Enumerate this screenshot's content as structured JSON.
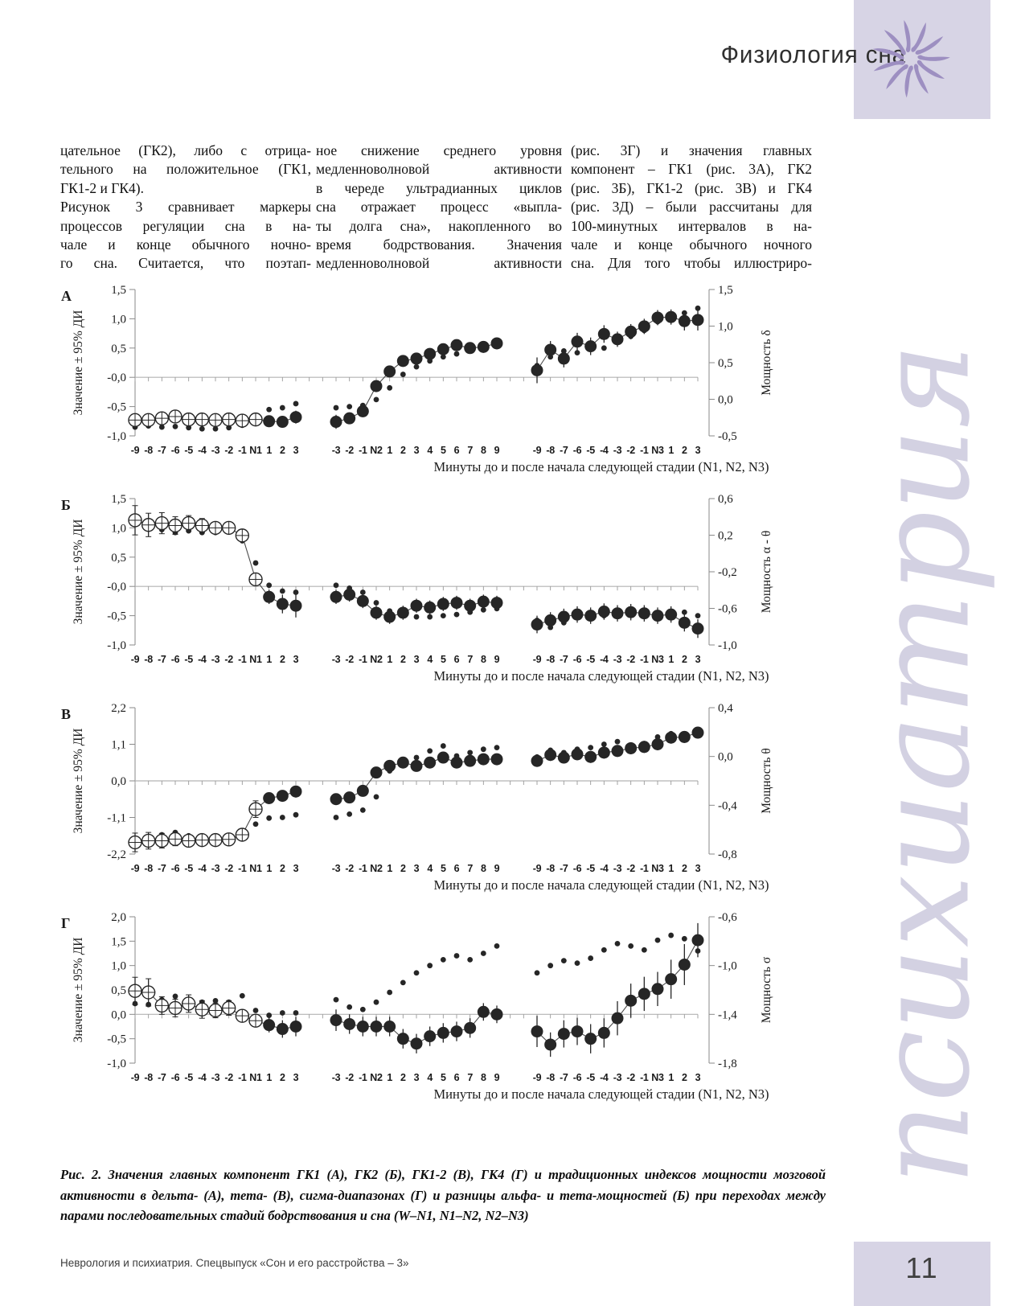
{
  "page": {
    "header": {
      "title": "Физиология сна",
      "box_color": "#d7d4e5",
      "star_color": "#9d8fc1"
    },
    "watermark": "психиатрия",
    "footer": {
      "journal": "Неврология и психиатрия. Спецвыпуск «Сон и его расстройства – 3»",
      "page_number": "11"
    }
  },
  "article": {
    "columns": [
      [
        "цательное (ГК2), либо с отрица-",
        "тельного на положительное (ГК1,",
        "ГК1-2 и ГК4).",
        "Рисунок 3 сравнивает маркеры",
        "процессов регуляции сна в на-",
        "чале и конце обычного ночно-",
        "го сна. Считается, что поэтап-"
      ],
      [
        "ное снижение среднего уровня",
        "медленноволновой активности",
        "в череде ультрадианных циклов",
        "сна отражает процесс «выпла-",
        "ты долга сна», накопленного во",
        "время бодрствования. Значения",
        "медленноволновой активности"
      ],
      [
        "(рис. 3Г) и значения главных",
        "компонент – ГК1 (рис. 3А), ГК2",
        "(рис. 3Б), ГК1-2 (рис. 3В) и ГК4",
        "(рис. 3Д) – были рассчитаны для",
        "100-минутных интервалов в на-",
        "чале и конце обычного ночного",
        "сна. Для того чтобы иллюстриро-"
      ]
    ]
  },
  "caption": "Рис. 2. Значения главных компонент ГК1 (А), ГК2 (Б), ГК1-2 (В), ГК4 (Г) и традиционных индексов мощности мозговой активности в дельта- (А), тета- (В), сигма-диапазонах (Г) и разницы альфа- и тета-мощностей (Б) при переходах между парами последовательных стадий бодрствования и сна (W–N1, N1–N2, N2–N3)",
  "chart_data": [
    {
      "panel": "А",
      "type": "scatter",
      "ylabel_left": "Значение ± 95% ДИ",
      "ylabel_right": "Мощность δ",
      "xlabel": "Минуты до и после начала следующей стадии (N1, N2, N3)",
      "left_range": [
        -1.0,
        1.5
      ],
      "left_ticks": [
        {
          "v": 1.5,
          "label": "1,5"
        },
        {
          "v": 1.0,
          "label": "1,0"
        },
        {
          "v": 0.5,
          "label": "0,5"
        },
        {
          "v": 0.0,
          "label": "-0,0"
        },
        {
          "v": -0.5,
          "label": "-0,5"
        },
        {
          "v": -1.0,
          "label": "-1,0"
        }
      ],
      "right_ticks": [
        "1,5",
        "1,0",
        "0,5",
        "0,0",
        "-0,5"
      ],
      "groups": [
        {
          "labels": [
            "-9",
            "-8",
            "-7",
            "-6",
            "-5",
            "-4",
            "-3",
            "-2",
            "-1",
            "N1",
            "1",
            "2",
            "3"
          ],
          "open_until": 10,
          "main": [
            -0.73,
            -0.73,
            -0.7,
            -0.67,
            -0.72,
            -0.72,
            -0.73,
            -0.72,
            -0.74,
            -0.72,
            -0.75,
            -0.76,
            -0.68
          ],
          "err": [
            0.1,
            0.1,
            0.1,
            0.09,
            0.09,
            0.09,
            0.09,
            0.09,
            0.09,
            0.08,
            0.1,
            0.1,
            0.11
          ],
          "dotted": [
            -0.85,
            -0.83,
            -0.85,
            -0.84,
            -0.86,
            -0.88,
            -0.88,
            -0.86,
            -0.82,
            -0.65,
            -0.55,
            -0.52,
            -0.45
          ]
        },
        {
          "labels": [
            "-3",
            "-2",
            "-1",
            "N2",
            "1",
            "2",
            "3",
            "4",
            "5",
            "6",
            "7",
            "8",
            "9"
          ],
          "open_until": 0,
          "main": [
            -0.76,
            -0.7,
            -0.58,
            -0.15,
            0.1,
            0.28,
            0.32,
            0.4,
            0.48,
            0.55,
            0.5,
            0.52,
            0.58
          ],
          "err": [
            0.12,
            0.1,
            0.1,
            0.1,
            0.09,
            0.09,
            0.09,
            0.09,
            0.09,
            0.09,
            0.09,
            0.1,
            0.1
          ],
          "dotted": [
            -0.52,
            -0.5,
            -0.48,
            -0.38,
            -0.18,
            0.05,
            0.18,
            0.28,
            0.35,
            0.4,
            0.45,
            0.52,
            0.62
          ]
        },
        {
          "labels": [
            "-9",
            "-8",
            "-7",
            "-6",
            "-5",
            "-4",
            "-3",
            "-2",
            "-1",
            "N3",
            "1",
            "2",
            "3"
          ],
          "open_until": 0,
          "main": [
            0.12,
            0.47,
            0.32,
            0.61,
            0.53,
            0.74,
            0.65,
            0.78,
            0.87,
            1.02,
            1.03,
            0.96,
            0.98
          ],
          "err": [
            0.22,
            0.15,
            0.15,
            0.15,
            0.15,
            0.15,
            0.13,
            0.13,
            0.13,
            0.13,
            0.13,
            0.16,
            0.18
          ],
          "dotted": [
            0.2,
            0.35,
            0.45,
            0.42,
            0.55,
            0.5,
            0.62,
            0.7,
            0.8,
            0.95,
            1.08,
            1.1,
            1.18
          ]
        }
      ]
    },
    {
      "panel": "Б",
      "type": "scatter",
      "ylabel_left": "Значение ± 95% ДИ",
      "ylabel_right": "Мощность α - θ",
      "xlabel": "Минуты до и после начала следующей стадии (N1, N2, N3)",
      "left_range": [
        -1.0,
        1.5
      ],
      "left_ticks": [
        {
          "v": 1.5,
          "label": "1,5"
        },
        {
          "v": 1.0,
          "label": "1,0"
        },
        {
          "v": 0.5,
          "label": "0,5"
        },
        {
          "v": 0.0,
          "label": "-0,0"
        },
        {
          "v": -0.5,
          "label": "-0,5"
        },
        {
          "v": -1.0,
          "label": "-1,0"
        }
      ],
      "right_ticks": [
        "0,6",
        "0,2",
        "-0,2",
        "-0,6",
        "-1,0"
      ],
      "groups": [
        {
          "labels": [
            "-9",
            "-8",
            "-7",
            "-6",
            "-5",
            "-4",
            "-3",
            "-2",
            "-1",
            "N1",
            "1",
            "2",
            "3"
          ],
          "open_until": 10,
          "main": [
            1.13,
            1.05,
            1.08,
            1.04,
            1.08,
            1.04,
            1.0,
            1.0,
            0.87,
            0.12,
            -0.18,
            -0.3,
            -0.33
          ],
          "err": [
            0.25,
            0.2,
            0.18,
            0.15,
            0.13,
            0.12,
            0.1,
            0.1,
            0.08,
            0.1,
            0.12,
            0.16,
            0.2
          ],
          "dotted": [
            1.1,
            1.02,
            0.97,
            0.92,
            0.95,
            0.92,
            0.92,
            0.94,
            0.78,
            0.4,
            0.02,
            -0.08,
            -0.1
          ]
        },
        {
          "labels": [
            "-3",
            "-2",
            "-1",
            "N2",
            "1",
            "2",
            "3",
            "4",
            "5",
            "6",
            "7",
            "8",
            "9"
          ],
          "open_until": 0,
          "main": [
            -0.18,
            -0.14,
            -0.25,
            -0.45,
            -0.52,
            -0.45,
            -0.33,
            -0.36,
            -0.3,
            -0.28,
            -0.33,
            -0.26,
            -0.28
          ],
          "err": [
            0.12,
            0.12,
            0.12,
            0.12,
            0.12,
            0.12,
            0.12,
            0.12,
            0.12,
            0.12,
            0.12,
            0.12,
            0.12
          ],
          "dotted": [
            0.02,
            -0.03,
            -0.1,
            -0.28,
            -0.42,
            -0.48,
            -0.52,
            -0.52,
            -0.5,
            -0.48,
            -0.44,
            -0.4,
            -0.38
          ]
        },
        {
          "labels": [
            "-9",
            "-8",
            "-7",
            "-6",
            "-5",
            "-4",
            "-3",
            "-2",
            "-1",
            "N3",
            "1",
            "2",
            "3"
          ],
          "open_until": 0,
          "main": [
            -0.65,
            -0.58,
            -0.52,
            -0.48,
            -0.5,
            -0.43,
            -0.46,
            -0.44,
            -0.46,
            -0.5,
            -0.48,
            -0.62,
            -0.72
          ],
          "err": [
            0.15,
            0.14,
            0.14,
            0.14,
            0.14,
            0.14,
            0.14,
            0.14,
            0.14,
            0.14,
            0.14,
            0.15,
            0.16
          ],
          "dotted": [
            -0.58,
            -0.7,
            -0.62,
            -0.52,
            -0.46,
            -0.5,
            -0.44,
            -0.4,
            -0.44,
            -0.46,
            -0.52,
            -0.44,
            -0.5
          ]
        }
      ]
    },
    {
      "panel": "В",
      "type": "scatter",
      "ylabel_left": "Значение ± 95% ДИ",
      "ylabel_right": "Мощность θ",
      "xlabel": "Минуты до и после начала следующей стадии (N1, N2, N3)",
      "left_range": [
        -2.2,
        2.2
      ],
      "left_ticks": [
        {
          "v": 2.2,
          "label": "2,2"
        },
        {
          "v": 1.1,
          "label": "1,1"
        },
        {
          "v": 0.0,
          "label": "0,0"
        },
        {
          "v": -1.1,
          "label": "-1,1"
        },
        {
          "v": -2.2,
          "label": "-2,2"
        }
      ],
      "right_ticks": [
        "0,4",
        "0,0",
        "-0,4",
        "-0,8"
      ],
      "groups": [
        {
          "labels": [
            "-9",
            "-8",
            "-7",
            "-6",
            "-5",
            "-4",
            "-3",
            "-2",
            "-1",
            "N1",
            "1",
            "2",
            "3"
          ],
          "open_until": 10,
          "main": [
            -1.85,
            -1.8,
            -1.8,
            -1.75,
            -1.8,
            -1.78,
            -1.78,
            -1.76,
            -1.62,
            -0.85,
            -0.52,
            -0.45,
            -0.32
          ],
          "err": [
            0.28,
            0.25,
            0.22,
            0.2,
            0.18,
            0.15,
            0.15,
            0.15,
            0.15,
            0.25,
            0.15,
            0.15,
            0.18
          ],
          "dotted": [
            -1.82,
            -1.76,
            -1.62,
            -1.55,
            -1.65,
            -1.68,
            -1.7,
            -1.66,
            -1.5,
            -1.3,
            -1.12,
            -1.1,
            -1.02
          ]
        },
        {
          "labels": [
            "-3",
            "-2",
            "-1",
            "N2",
            "1",
            "2",
            "3",
            "4",
            "5",
            "6",
            "7",
            "8",
            "9"
          ],
          "open_until": 0,
          "main": [
            -0.55,
            -0.5,
            -0.3,
            0.25,
            0.45,
            0.55,
            0.45,
            0.55,
            0.7,
            0.55,
            0.6,
            0.65,
            0.65
          ],
          "err": [
            0.15,
            0.15,
            0.15,
            0.15,
            0.15,
            0.15,
            0.15,
            0.15,
            0.15,
            0.15,
            0.15,
            0.15,
            0.15
          ],
          "dotted": [
            -1.1,
            -1.0,
            -0.88,
            -0.48,
            0.3,
            0.55,
            0.7,
            0.9,
            1.05,
            0.75,
            0.85,
            0.95,
            1.0
          ]
        },
        {
          "labels": [
            "-9",
            "-8",
            "-7",
            "-6",
            "-5",
            "-4",
            "-3",
            "-2",
            "-1",
            "N3",
            "1",
            "2",
            "3"
          ],
          "open_until": 0,
          "main": [
            0.6,
            0.78,
            0.7,
            0.8,
            0.72,
            0.85,
            0.9,
            0.98,
            1.02,
            1.1,
            1.3,
            1.32,
            1.45
          ],
          "err": [
            0.18,
            0.18,
            0.18,
            0.18,
            0.18,
            0.18,
            0.18,
            0.18,
            0.18,
            0.18,
            0.18,
            0.18,
            0.18
          ],
          "dotted": [
            0.72,
            0.92,
            0.85,
            0.95,
            1.0,
            1.1,
            1.18,
            1.08,
            1.12,
            1.32,
            1.42,
            1.38,
            1.5
          ]
        }
      ]
    },
    {
      "panel": "Г",
      "type": "scatter",
      "ylabel_left": "Значение ± 95% ДИ",
      "ylabel_right": "Мощность σ",
      "xlabel": "Минуты до и после начала следующей стадии (N1, N2, N3)",
      "left_range": [
        -1.0,
        2.0
      ],
      "left_ticks": [
        {
          "v": 2.0,
          "label": "2,0"
        },
        {
          "v": 1.5,
          "label": "1,5"
        },
        {
          "v": 1.0,
          "label": "1,0"
        },
        {
          "v": 0.5,
          "label": "0,5"
        },
        {
          "v": 0.0,
          "label": "0,0"
        },
        {
          "v": -0.5,
          "label": "-0,5"
        },
        {
          "v": -1.0,
          "label": "-1,0"
        }
      ],
      "right_ticks": [
        "-0,6",
        "-1,0",
        "-1,4",
        "-1,8"
      ],
      "groups": [
        {
          "labels": [
            "-9",
            "-8",
            "-7",
            "-6",
            "-5",
            "-4",
            "-3",
            "-2",
            "-1",
            "N1",
            "1",
            "2",
            "3"
          ],
          "open_until": 10,
          "main": [
            0.48,
            0.45,
            0.18,
            0.13,
            0.22,
            0.1,
            0.08,
            0.13,
            -0.03,
            -0.13,
            -0.22,
            -0.3,
            -0.25
          ],
          "err": [
            0.28,
            0.28,
            0.18,
            0.18,
            0.18,
            0.18,
            0.15,
            0.15,
            0.12,
            0.12,
            0.15,
            0.18,
            0.2
          ],
          "dotted": [
            0.22,
            0.2,
            0.3,
            0.37,
            0.3,
            0.25,
            0.28,
            0.25,
            0.38,
            0.08,
            -0.02,
            0.03,
            0.03
          ]
        },
        {
          "labels": [
            "-3",
            "-2",
            "-1",
            "N2",
            "1",
            "2",
            "3",
            "4",
            "5",
            "6",
            "7",
            "8",
            "9"
          ],
          "open_until": 0,
          "main": [
            -0.12,
            -0.2,
            -0.25,
            -0.25,
            -0.25,
            -0.5,
            -0.6,
            -0.45,
            -0.38,
            -0.35,
            -0.28,
            0.05,
            0.0
          ],
          "err": [
            0.22,
            0.2,
            0.2,
            0.2,
            0.2,
            0.2,
            0.2,
            0.2,
            0.2,
            0.2,
            0.2,
            0.18,
            0.18
          ],
          "dotted": [
            0.3,
            0.15,
            0.1,
            0.25,
            0.45,
            0.65,
            0.85,
            1.0,
            1.12,
            1.2,
            1.12,
            1.25,
            1.4
          ]
        },
        {
          "labels": [
            "-9",
            "-8",
            "-7",
            "-6",
            "-5",
            "-4",
            "-3",
            "-2",
            "-1",
            "N3",
            "1",
            "2",
            "3"
          ],
          "open_until": 0,
          "main": [
            -0.35,
            -0.62,
            -0.4,
            -0.35,
            -0.5,
            -0.38,
            -0.08,
            0.28,
            0.42,
            0.52,
            0.72,
            1.02,
            1.52
          ],
          "err": [
            0.32,
            0.25,
            0.28,
            0.28,
            0.3,
            0.3,
            0.35,
            0.35,
            0.35,
            0.35,
            0.4,
            0.42,
            0.35
          ],
          "dotted": [
            0.85,
            1.0,
            1.1,
            1.05,
            1.15,
            1.32,
            1.45,
            1.4,
            1.32,
            1.52,
            1.62,
            1.55,
            1.3
          ]
        }
      ]
    }
  ]
}
